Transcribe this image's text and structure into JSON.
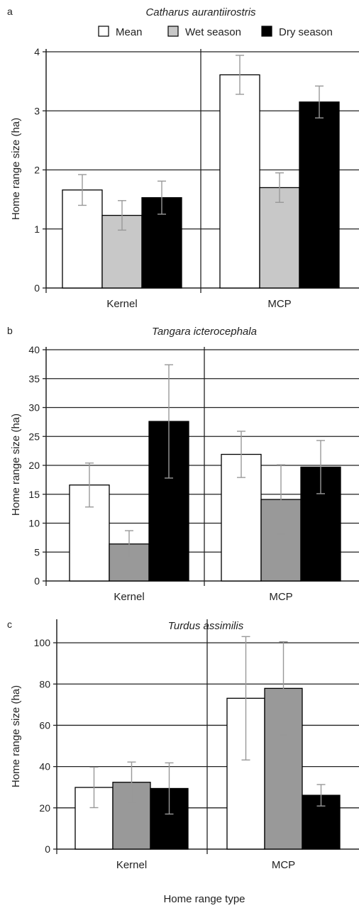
{
  "legend": [
    {
      "label": "Mean",
      "color": "#ffffff"
    },
    {
      "label": "Wet season",
      "color": "#c8c8c8"
    },
    {
      "label": "Dry season",
      "color": "#000000"
    }
  ],
  "colors": {
    "panel_b_c_wet": "#999999",
    "errorbar": "#999999",
    "axis": "#222222"
  },
  "chart_data": [
    {
      "type": "bar",
      "panel": "a",
      "title": "Catharus aurantiirostris",
      "ylabel": "Home range size (ha)",
      "xlabel": "",
      "categories": [
        "Kernel",
        "MCP"
      ],
      "ylim": [
        0,
        4
      ],
      "yticks": [
        0,
        1,
        2,
        3,
        4
      ],
      "grid": true,
      "series": [
        {
          "name": "Mean",
          "values": [
            1.66,
            3.61
          ],
          "errors": [
            0.26,
            0.33
          ]
        },
        {
          "name": "Wet season",
          "values": [
            1.23,
            1.7
          ],
          "errors": [
            0.25,
            0.25
          ]
        },
        {
          "name": "Dry season",
          "values": [
            1.53,
            3.15
          ],
          "errors": [
            0.28,
            0.27
          ]
        }
      ]
    },
    {
      "type": "bar",
      "panel": "b",
      "title": "Tangara icterocephala",
      "ylabel": "Home range size (ha)",
      "xlabel": "",
      "categories": [
        "Kernel",
        "MCP"
      ],
      "ylim": [
        0,
        40
      ],
      "yticks": [
        0,
        5,
        10,
        15,
        20,
        25,
        30,
        35,
        40
      ],
      "grid": true,
      "series": [
        {
          "name": "Mean",
          "values": [
            16.6,
            21.9
          ],
          "errors": [
            3.8,
            4.0
          ]
        },
        {
          "name": "Wet season",
          "values": [
            6.4,
            14.1
          ],
          "errors": [
            2.3,
            6.0
          ]
        },
        {
          "name": "Dry season",
          "values": [
            27.6,
            19.7
          ],
          "errors": [
            9.8,
            4.6
          ]
        }
      ]
    },
    {
      "type": "bar",
      "panel": "c",
      "title": "Turdus assimilis",
      "ylabel": "Home range size (ha)",
      "xlabel": "Home range type",
      "categories": [
        "Kernel",
        "MCP"
      ],
      "ylim": [
        0,
        110
      ],
      "yticks": [
        0,
        20,
        40,
        60,
        80,
        100
      ],
      "grid": true,
      "series": [
        {
          "name": "Mean",
          "values": [
            29.9,
            73.1
          ],
          "errors": [
            9.8,
            29.9
          ]
        },
        {
          "name": "Wet season",
          "values": [
            32.4,
            77.9
          ],
          "errors": [
            9.8,
            22.6
          ]
        },
        {
          "name": "Dry season",
          "values": [
            29.4,
            26.1
          ],
          "errors": [
            12.4,
            5.2
          ]
        }
      ]
    }
  ]
}
